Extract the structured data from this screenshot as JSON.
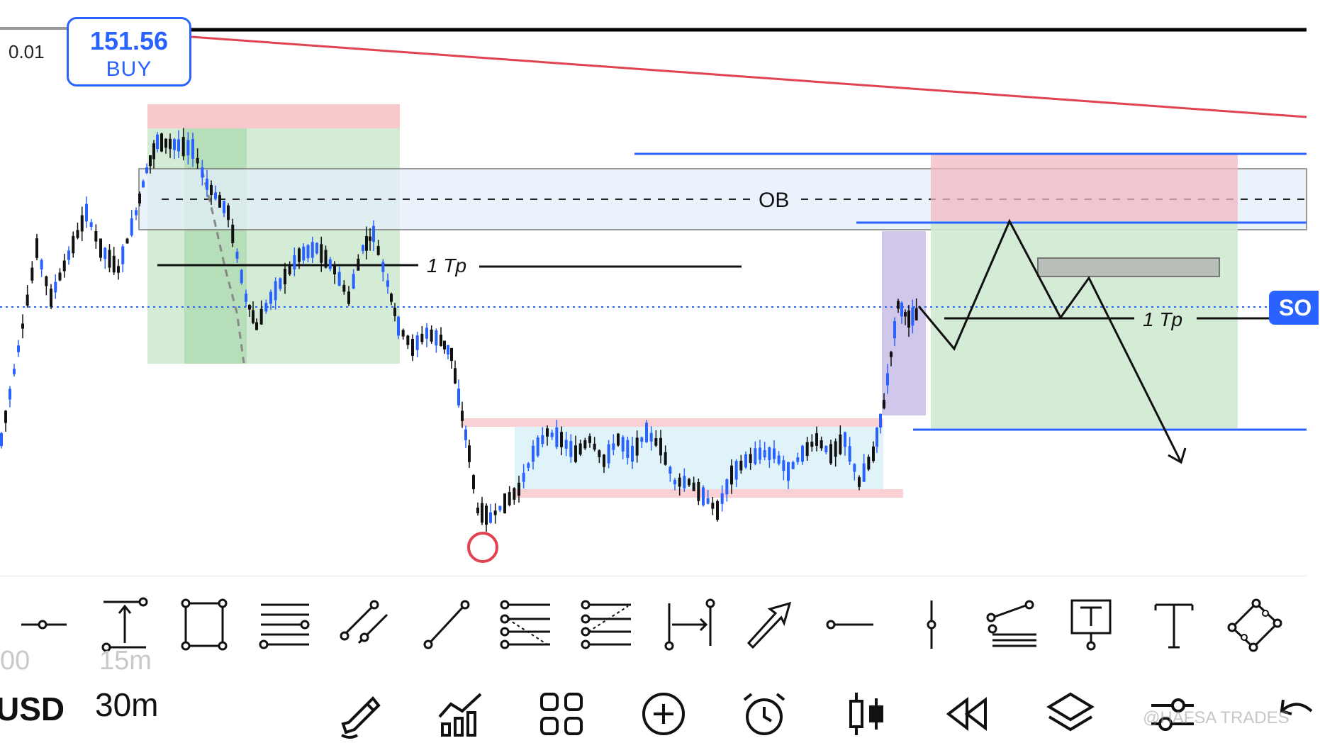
{
  "order": {
    "lot": "0.01",
    "price": "151.56",
    "side": "BUY"
  },
  "chart": {
    "zone_label": "OB",
    "tp_label_1": "1 Tp",
    "tp_label_2": "1 Tp",
    "sell_tab_label": "SO"
  },
  "colors": {
    "accent": "#2962ff",
    "candle_bull": "#2962ff",
    "candle_bear": "#111111",
    "sl_zone": "#f7c9cd",
    "tp_zone": "#cfe9d0",
    "trend_line": "#e0434f",
    "highlight_purple": "#c9bde6",
    "range_box": "#dff3f8"
  },
  "draw_toolbar": {
    "tools": [
      "horizontal-ray-icon",
      "price-range-icon",
      "rectangle-icon",
      "horizontal-lines-icon",
      "parallel-channel-icon",
      "trend-line-icon",
      "fib-retracement-icon",
      "fib-extension-icon",
      "date-range-icon",
      "arrow-icon",
      "horizontal-line-icon",
      "vertical-line-icon",
      "regression-icon",
      "text-note-icon",
      "text-icon",
      "rotated-rectangle-icon"
    ]
  },
  "bottom_bar": {
    "symbol": "USD",
    "timeframe": "30m",
    "prev_timeframe": "15m",
    "prev_symbol": "00",
    "watermark": "@HAFSA TRADES",
    "icons": [
      "pencil-icon",
      "indicators-icon",
      "layout-grid-icon",
      "add-icon",
      "alarm-icon",
      "candles-icon",
      "replay-icon",
      "layers-icon",
      "settings-sliders-icon",
      "undo-icon"
    ]
  }
}
